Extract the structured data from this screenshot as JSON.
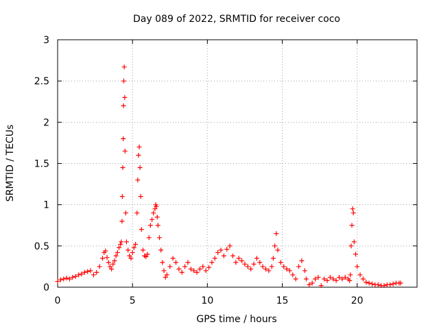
{
  "chart_data": {
    "type": "scatter",
    "title": "Day 089 of 2022, SRMTID for receiver coco",
    "xlabel": "GPS time / hours",
    "ylabel": "SRMTID / TECUs",
    "xlim": [
      0,
      24
    ],
    "ylim": [
      0,
      3
    ],
    "xticks": [
      0,
      5,
      10,
      15,
      20
    ],
    "yticks": [
      0,
      0.5,
      1,
      1.5,
      2,
      2.5,
      3
    ],
    "xtick_labels": [
      "0",
      "5",
      "10",
      "15",
      "20"
    ],
    "ytick_labels": [
      "0",
      "0.5",
      "1",
      "1.5",
      "2",
      "2.5",
      "3"
    ],
    "grid": true,
    "marker": "+",
    "color": "#ff0000",
    "series": [
      {
        "name": "SRMTID",
        "x": [
          0.0,
          0.2,
          0.4,
          0.6,
          0.8,
          1.0,
          1.2,
          1.4,
          1.6,
          1.8,
          2.0,
          2.2,
          2.4,
          2.6,
          2.8,
          3.0,
          3.1,
          3.2,
          3.3,
          3.4,
          3.5,
          3.6,
          3.7,
          3.8,
          3.9,
          4.0,
          4.1,
          4.2,
          4.25,
          4.3,
          4.32,
          4.35,
          4.38,
          4.4,
          4.42,
          4.45,
          4.48,
          4.5,
          4.55,
          4.6,
          4.7,
          4.8,
          4.9,
          5.0,
          5.1,
          5.2,
          5.3,
          5.35,
          5.4,
          5.45,
          5.5,
          5.55,
          5.6,
          5.7,
          5.8,
          5.9,
          6.0,
          6.1,
          6.2,
          6.3,
          6.4,
          6.5,
          6.55,
          6.6,
          6.65,
          6.7,
          6.8,
          6.9,
          7.0,
          7.1,
          7.2,
          7.3,
          7.5,
          7.7,
          7.9,
          8.1,
          8.3,
          8.5,
          8.7,
          8.9,
          9.1,
          9.3,
          9.5,
          9.7,
          9.9,
          10.1,
          10.3,
          10.5,
          10.7,
          10.9,
          11.1,
          11.3,
          11.5,
          11.7,
          11.9,
          12.1,
          12.3,
          12.5,
          12.7,
          12.9,
          13.1,
          13.3,
          13.5,
          13.7,
          13.9,
          14.1,
          14.3,
          14.4,
          14.5,
          14.6,
          14.7,
          14.9,
          15.1,
          15.3,
          15.5,
          15.7,
          15.9,
          16.1,
          16.3,
          16.5,
          16.6,
          16.8,
          17.0,
          17.2,
          17.4,
          17.6,
          17.8,
          18.0,
          18.2,
          18.4,
          18.6,
          18.8,
          19.0,
          19.2,
          19.4,
          19.5,
          19.55,
          19.6,
          19.65,
          19.7,
          19.75,
          19.8,
          19.9,
          20.0,
          20.2,
          20.4,
          20.6,
          20.8,
          21.0,
          21.2,
          21.4,
          21.6,
          21.8,
          22.0,
          22.2,
          22.4,
          22.6,
          22.8,
          22.9
        ],
        "y": [
          0.07,
          0.09,
          0.1,
          0.11,
          0.1,
          0.12,
          0.13,
          0.15,
          0.16,
          0.18,
          0.19,
          0.2,
          0.15,
          0.18,
          0.25,
          0.35,
          0.42,
          0.44,
          0.36,
          0.3,
          0.25,
          0.22,
          0.28,
          0.32,
          0.38,
          0.42,
          0.48,
          0.52,
          0.55,
          0.8,
          1.1,
          1.45,
          1.8,
          2.2,
          2.5,
          2.67,
          2.3,
          1.65,
          0.9,
          0.55,
          0.45,
          0.38,
          0.35,
          0.42,
          0.48,
          0.52,
          0.9,
          1.3,
          1.6,
          1.7,
          1.45,
          1.1,
          0.7,
          0.45,
          0.38,
          0.37,
          0.4,
          0.6,
          0.75,
          0.82,
          0.9,
          0.95,
          1.0,
          0.98,
          0.85,
          0.75,
          0.6,
          0.45,
          0.3,
          0.2,
          0.12,
          0.15,
          0.25,
          0.35,
          0.3,
          0.22,
          0.18,
          0.25,
          0.3,
          0.22,
          0.2,
          0.18,
          0.22,
          0.25,
          0.2,
          0.24,
          0.3,
          0.35,
          0.42,
          0.45,
          0.38,
          0.46,
          0.5,
          0.38,
          0.3,
          0.35,
          0.32,
          0.28,
          0.25,
          0.22,
          0.28,
          0.35,
          0.3,
          0.25,
          0.22,
          0.2,
          0.25,
          0.35,
          0.5,
          0.65,
          0.45,
          0.3,
          0.25,
          0.22,
          0.2,
          0.15,
          0.1,
          0.25,
          0.32,
          0.2,
          0.1,
          0.03,
          0.05,
          0.1,
          0.12,
          0.02,
          0.1,
          0.08,
          0.12,
          0.1,
          0.08,
          0.12,
          0.1,
          0.12,
          0.1,
          0.08,
          0.15,
          0.5,
          0.75,
          0.95,
          0.9,
          0.55,
          0.4,
          0.25,
          0.15,
          0.1,
          0.06,
          0.05,
          0.04,
          0.03,
          0.03,
          0.02,
          0.02,
          0.03,
          0.03,
          0.04,
          0.05,
          0.05,
          0.05
        ]
      }
    ]
  }
}
